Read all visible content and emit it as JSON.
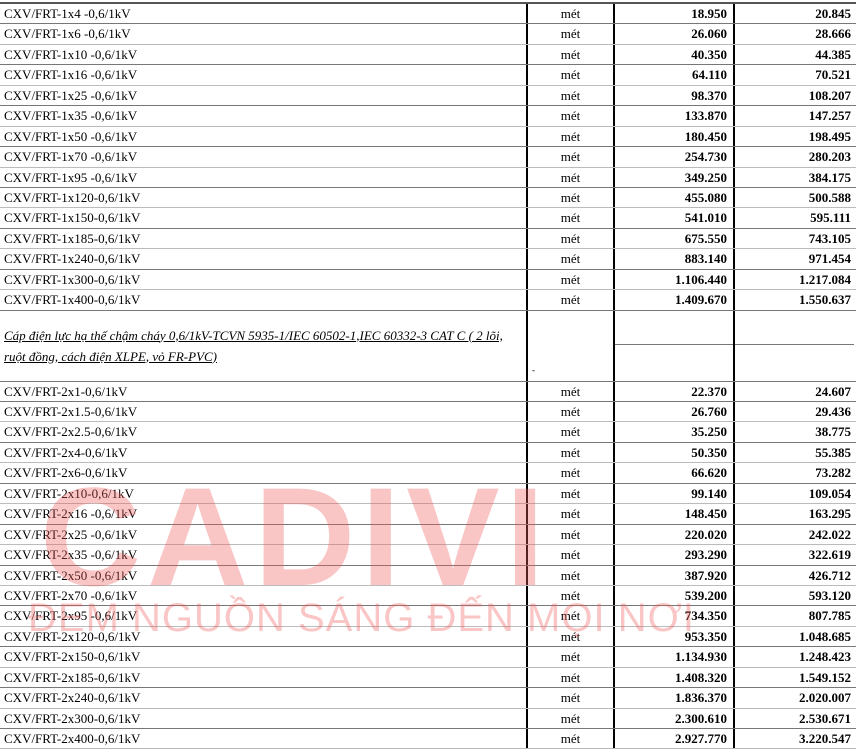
{
  "unit": "mét",
  "rows_1core": [
    {
      "name": "CXV/FRT-1x4 -0,6/1kV",
      "unit": "mét",
      "price1": "18.950",
      "price2": "20.845"
    },
    {
      "name": "CXV/FRT-1x6 -0,6/1kV",
      "unit": "mét",
      "price1": "26.060",
      "price2": "28.666"
    },
    {
      "name": "CXV/FRT-1x10 -0,6/1kV",
      "unit": "mét",
      "price1": "40.350",
      "price2": "44.385"
    },
    {
      "name": "CXV/FRT-1x16 -0,6/1kV",
      "unit": "mét",
      "price1": "64.110",
      "price2": "70.521"
    },
    {
      "name": "CXV/FRT-1x25 -0,6/1kV",
      "unit": "mét",
      "price1": "98.370",
      "price2": "108.207"
    },
    {
      "name": "CXV/FRT-1x35 -0,6/1kV",
      "unit": "mét",
      "price1": "133.870",
      "price2": "147.257"
    },
    {
      "name": "CXV/FRT-1x50 -0,6/1kV",
      "unit": "mét",
      "price1": "180.450",
      "price2": "198.495"
    },
    {
      "name": "CXV/FRT-1x70 -0,6/1kV",
      "unit": "mét",
      "price1": "254.730",
      "price2": "280.203"
    },
    {
      "name": "CXV/FRT-1x95 -0,6/1kV",
      "unit": "mét",
      "price1": "349.250",
      "price2": "384.175"
    },
    {
      "name": "CXV/FRT-1x120-0,6/1kV",
      "unit": "mét",
      "price1": "455.080",
      "price2": "500.588"
    },
    {
      "name": "CXV/FRT-1x150-0,6/1kV",
      "unit": "mét",
      "price1": "541.010",
      "price2": "595.111"
    },
    {
      "name": "CXV/FRT-1x185-0,6/1kV",
      "unit": "mét",
      "price1": "675.550",
      "price2": "743.105"
    },
    {
      "name": "CXV/FRT-1x240-0,6/1kV",
      "unit": "mét",
      "price1": "883.140",
      "price2": "971.454"
    },
    {
      "name": "CXV/FRT-1x300-0,6/1kV",
      "unit": "mét",
      "price1": "1.106.440",
      "price2": "1.217.084"
    },
    {
      "name": "CXV/FRT-1x400-0,6/1kV",
      "unit": "mét",
      "price1": "1.409.670",
      "price2": "1.550.637"
    }
  ],
  "section_heading": "Cáp điện lực hạ thế chậm cháy 0,6/1kV-TCVN 5935-1/IEC 60502-1,IEC 60332-3 CAT C ( 2 lõi, ruột đồng, cách điện XLPE, vỏ FR-PVC)",
  "section_mark": "-",
  "rows_2core": [
    {
      "name": "CXV/FRT-2x1-0,6/1kV",
      "unit": "mét",
      "price1": "22.370",
      "price2": "24.607"
    },
    {
      "name": "CXV/FRT-2x1.5-0,6/1kV",
      "unit": "mét",
      "price1": "26.760",
      "price2": "29.436"
    },
    {
      "name": "CXV/FRT-2x2.5-0,6/1kV",
      "unit": "mét",
      "price1": "35.250",
      "price2": "38.775"
    },
    {
      "name": "CXV/FRT-2x4-0,6/1kV",
      "unit": "mét",
      "price1": "50.350",
      "price2": "55.385"
    },
    {
      "name": "CXV/FRT-2x6-0,6/1kV",
      "unit": "mét",
      "price1": "66.620",
      "price2": "73.282"
    },
    {
      "name": "CXV/FRT-2x10-0,6/1kV",
      "unit": "mét",
      "price1": "99.140",
      "price2": "109.054"
    },
    {
      "name": "CXV/FRT-2x16 -0,6/1kV",
      "unit": "mét",
      "price1": "148.450",
      "price2": "163.295"
    },
    {
      "name": "CXV/FRT-2x25 -0,6/1kV",
      "unit": "mét",
      "price1": "220.020",
      "price2": "242.022"
    },
    {
      "name": "CXV/FRT-2x35 -0,6/1kV",
      "unit": "mét",
      "price1": "293.290",
      "price2": "322.619"
    },
    {
      "name": "CXV/FRT-2x50 -0,6/1kV",
      "unit": "mét",
      "price1": "387.920",
      "price2": "426.712"
    },
    {
      "name": "CXV/FRT-2x70 -0,6/1kV",
      "unit": "mét",
      "price1": "539.200",
      "price2": "593.120"
    },
    {
      "name": "CXV/FRT-2x95 -0,6/1kV",
      "unit": "mét",
      "price1": "734.350",
      "price2": "807.785"
    },
    {
      "name": "CXV/FRT-2x120-0,6/1kV",
      "unit": "mét",
      "price1": "953.350",
      "price2": "1.048.685"
    },
    {
      "name": "CXV/FRT-2x150-0,6/1kV",
      "unit": "mét",
      "price1": "1.134.930",
      "price2": "1.248.423"
    },
    {
      "name": "CXV/FRT-2x185-0,6/1kV",
      "unit": "mét",
      "price1": "1.408.320",
      "price2": "1.549.152"
    },
    {
      "name": "CXV/FRT-2x240-0,6/1kV",
      "unit": "mét",
      "price1": "1.836.370",
      "price2": "2.020.007"
    },
    {
      "name": "CXV/FRT-2x300-0,6/1kV",
      "unit": "mét",
      "price1": "2.300.610",
      "price2": "2.530.671"
    },
    {
      "name": "CXV/FRT-2x400-0,6/1kV",
      "unit": "mét",
      "price1": "2.927.770",
      "price2": "3.220.547"
    }
  ],
  "watermark": {
    "brand": "CADIVI",
    "tagline": "ĐEM NGUỒN SÁNG ĐẾN MỌI NƠI",
    "color": "#ee5a5a"
  }
}
